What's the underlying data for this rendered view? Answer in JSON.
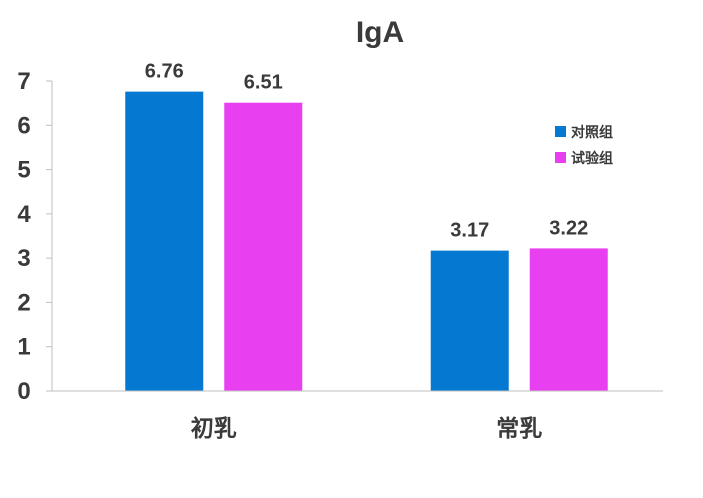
{
  "chart_data": {
    "type": "bar",
    "title": "IgA",
    "categories": [
      "初乳",
      "常乳"
    ],
    "series": [
      {
        "name": "对照组",
        "values": [
          6.76,
          3.17
        ],
        "color": "#0578d2"
      },
      {
        "name": "试验组",
        "values": [
          6.51,
          3.22
        ],
        "color": "#e83ff1"
      }
    ],
    "yticks": [
      "0",
      "1",
      "2",
      "3",
      "4",
      "5",
      "6",
      "7"
    ],
    "ylim": [
      0,
      7
    ],
    "xlabel": "",
    "ylabel": "",
    "grid": false,
    "legend_position": "right",
    "data_labels": [
      "6.76",
      "3.17",
      "6.51",
      "3.22"
    ]
  }
}
